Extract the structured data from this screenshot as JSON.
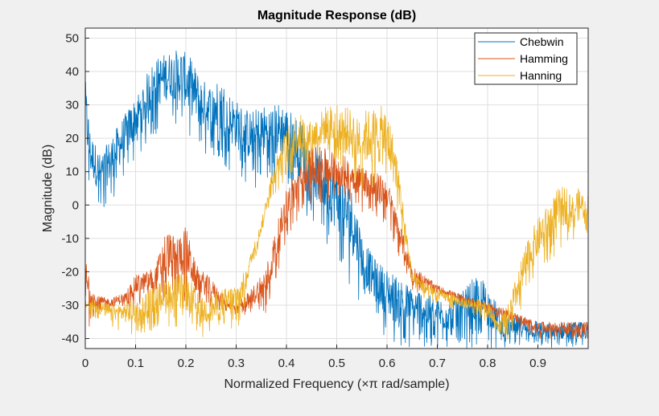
{
  "chart_data": {
    "type": "line",
    "title": "Magnitude Response (dB)",
    "xlabel": "Normalized Frequency (×π rad/sample)",
    "ylabel": "Magnitude (dB)",
    "xlim": [
      0,
      1
    ],
    "ylim": [
      -43,
      53
    ],
    "xticks": [
      0,
      0.1,
      0.2,
      0.3,
      0.4,
      0.5,
      0.6,
      0.7,
      0.8,
      0.9
    ],
    "xtick_labels": [
      "0",
      "0.1",
      "0.2",
      "0.3",
      "0.4",
      "0.5",
      "0.6",
      "0.7",
      "0.8",
      "0.9"
    ],
    "yticks": [
      -40,
      -30,
      -20,
      -10,
      0,
      10,
      20,
      30,
      40,
      50
    ],
    "ytick_labels": [
      "-40",
      "-30",
      "-20",
      "-10",
      "0",
      "10",
      "20",
      "30",
      "40",
      "50"
    ],
    "grid": true,
    "legend_position": "top-right",
    "series": [
      {
        "name": "Chebwin",
        "color": "#0072bd",
        "x": [
          0,
          0.01,
          0.03,
          0.05,
          0.07,
          0.09,
          0.11,
          0.13,
          0.15,
          0.17,
          0.19,
          0.21,
          0.23,
          0.25,
          0.27,
          0.29,
          0.31,
          0.33,
          0.35,
          0.37,
          0.39,
          0.41,
          0.43,
          0.45,
          0.47,
          0.49,
          0.51,
          0.53,
          0.55,
          0.57,
          0.59,
          0.61,
          0.63,
          0.65,
          0.67,
          0.69,
          0.71,
          0.73,
          0.75,
          0.77,
          0.79,
          0.81,
          0.83,
          0.85,
          0.87,
          0.89,
          0.91,
          0.93,
          0.95,
          0.97,
          1.0
        ],
        "upper": [
          38,
          22,
          15,
          20,
          25,
          30,
          35,
          42,
          45,
          46,
          47,
          44,
          38,
          36,
          38,
          33,
          30,
          28,
          30,
          30,
          31,
          28,
          25,
          18,
          17,
          14,
          10,
          5,
          -8,
          -15,
          -18,
          -20,
          -22,
          -25,
          -25,
          -27,
          -28,
          -27,
          -26,
          -22,
          -22,
          -27,
          -33,
          -34,
          -33,
          -34,
          -35,
          -36,
          -35,
          -35,
          -35
        ],
        "lower": [
          10,
          2,
          -3,
          0,
          5,
          10,
          15,
          20,
          22,
          25,
          22,
          18,
          15,
          14,
          12,
          10,
          8,
          5,
          5,
          6,
          5,
          4,
          -2,
          -5,
          -10,
          -16,
          -20,
          -25,
          -30,
          -35,
          -38,
          -43,
          -43,
          -43,
          -43,
          -43,
          -43,
          -43,
          -43,
          -43,
          -43,
          -43,
          -43,
          -43,
          -43,
          -43,
          -43,
          -43,
          -43,
          -43,
          -43
        ]
      },
      {
        "name": "Hamming",
        "color": "#d95319",
        "x": [
          0,
          0.02,
          0.05,
          0.08,
          0.1,
          0.12,
          0.14,
          0.16,
          0.18,
          0.2,
          0.22,
          0.25,
          0.28,
          0.3,
          0.33,
          0.36,
          0.4,
          0.45,
          0.5,
          0.55,
          0.6,
          0.65,
          0.7,
          0.75,
          0.8,
          0.85,
          0.9,
          0.95,
          1.0
        ],
        "upper": [
          -15,
          -27,
          -28,
          -26,
          -21,
          -20,
          -18,
          -7,
          -10,
          -6,
          -18,
          -22,
          -28,
          -30,
          -25,
          -18,
          5,
          18,
          16,
          12,
          8,
          -18,
          -24,
          -27,
          -29,
          -32,
          -35,
          -35,
          -35
        ],
        "lower": [
          -40,
          -32,
          -32,
          -31,
          -30,
          -30,
          -30,
          -29,
          -29,
          -29,
          -30,
          -31,
          -32,
          -33,
          -33,
          -34,
          -10,
          0,
          0,
          -2,
          -6,
          -26,
          -27,
          -30,
          -33,
          -36,
          -40,
          -40,
          -40
        ]
      },
      {
        "name": "Hanning",
        "color": "#edb120",
        "x": [
          0,
          0.03,
          0.06,
          0.1,
          0.13,
          0.16,
          0.2,
          0.23,
          0.26,
          0.29,
          0.31,
          0.33,
          0.35,
          0.37,
          0.39,
          0.42,
          0.45,
          0.48,
          0.51,
          0.54,
          0.57,
          0.6,
          0.62,
          0.65,
          0.7,
          0.75,
          0.8,
          0.82,
          0.84,
          0.86,
          0.88,
          0.9,
          0.92,
          0.94,
          0.96,
          0.98,
          1.0
        ],
        "upper": [
          -28,
          -29,
          -30,
          -28,
          -25,
          -22,
          -20,
          -28,
          -26,
          -24,
          -22,
          -14,
          -5,
          10,
          20,
          28,
          25,
          30,
          30,
          28,
          29,
          30,
          15,
          -20,
          -25,
          -28,
          -28,
          -35,
          -30,
          -20,
          -10,
          -4,
          0,
          5,
          6,
          5,
          3
        ],
        "lower": [
          -33,
          -35,
          -37,
          -40,
          -38,
          -36,
          -38,
          -40,
          -40,
          -38,
          -36,
          -20,
          -10,
          2,
          5,
          8,
          10,
          12,
          8,
          5,
          3,
          2,
          -2,
          -26,
          -30,
          -32,
          -35,
          -38,
          -42,
          -35,
          -28,
          -22,
          -18,
          -14,
          -12,
          -10,
          -8
        ]
      }
    ]
  }
}
